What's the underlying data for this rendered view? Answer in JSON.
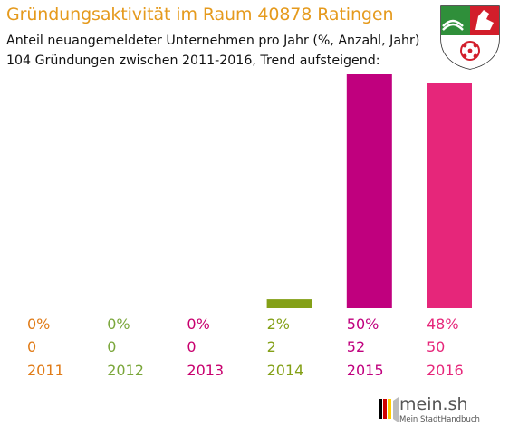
{
  "header": {
    "title": "Gründungsaktivität im Raum 40878 Ratingen",
    "subtitle_line1": "Anteil neuangemeldeter Unternehmen pro Jahr (%, Anzahl, Jahr)",
    "subtitle_line2": "104 Gründungen zwischen 2011-2016, Trend aufsteigend:"
  },
  "logo": {
    "brand": "mein.sh",
    "tagline": "Mein StadtHandbuch"
  },
  "chart_data": {
    "type": "bar",
    "categories": [
      "2011",
      "2012",
      "2013",
      "2014",
      "2015",
      "2016"
    ],
    "percent_labels": [
      "0%",
      "0%",
      "0%",
      "2%",
      "50%",
      "48%"
    ],
    "count_labels": [
      "0",
      "0",
      "0",
      "2",
      "52",
      "50"
    ],
    "values": [
      0,
      0,
      0,
      2,
      52,
      50
    ],
    "colors": [
      "#e07b17",
      "#7aa63a",
      "#c8006e",
      "#84a017",
      "#c0007e",
      "#e6267a"
    ],
    "title": "Gründungsaktivität im Raum 40878 Ratingen",
    "xlabel": "",
    "ylabel": "",
    "ylim": [
      0,
      52
    ],
    "grid": false,
    "legend": "none"
  }
}
